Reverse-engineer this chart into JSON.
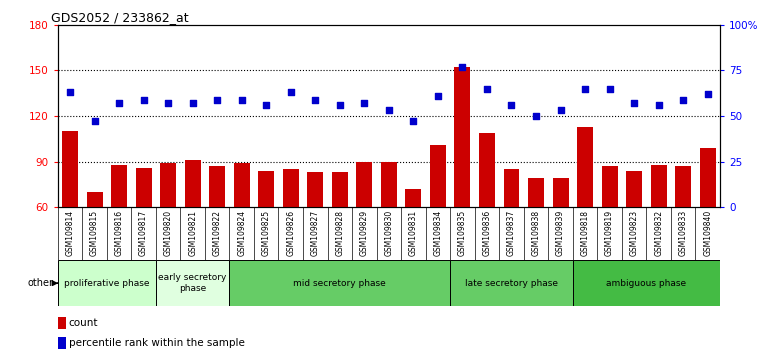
{
  "title": "GDS2052 / 233862_at",
  "samples": [
    "GSM109814",
    "GSM109815",
    "GSM109816",
    "GSM109817",
    "GSM109820",
    "GSM109821",
    "GSM109822",
    "GSM109824",
    "GSM109825",
    "GSM109826",
    "GSM109827",
    "GSM109828",
    "GSM109829",
    "GSM109830",
    "GSM109831",
    "GSM109834",
    "GSM109835",
    "GSM109836",
    "GSM109837",
    "GSM109838",
    "GSM109839",
    "GSM109818",
    "GSM109819",
    "GSM109823",
    "GSM109832",
    "GSM109833",
    "GSM109840"
  ],
  "count": [
    110,
    70,
    88,
    86,
    89,
    91,
    87,
    89,
    84,
    85,
    83,
    83,
    90,
    90,
    72,
    101,
    152,
    109,
    85,
    79,
    79,
    113,
    87,
    84,
    88,
    87,
    99
  ],
  "percentile_pct": [
    63,
    47,
    57,
    59,
    57,
    57,
    59,
    59,
    56,
    63,
    59,
    56,
    57,
    53,
    47,
    61,
    77,
    65,
    56,
    50,
    53,
    65,
    65,
    57,
    56,
    59,
    62
  ],
  "phases": [
    {
      "label": "proliferative phase",
      "start": 0,
      "end": 4,
      "color": "#ccffcc"
    },
    {
      "label": "early secretory\nphase",
      "start": 4,
      "end": 7,
      "color": "#e0ffe0"
    },
    {
      "label": "mid secretory phase",
      "start": 7,
      "end": 16,
      "color": "#66cc66"
    },
    {
      "label": "late secretory phase",
      "start": 16,
      "end": 21,
      "color": "#66cc66"
    },
    {
      "label": "ambiguous phase",
      "start": 21,
      "end": 27,
      "color": "#44bb44"
    }
  ],
  "ylim_left": [
    60,
    180
  ],
  "ylim_right": [
    0,
    100
  ],
  "yticks_left": [
    60,
    90,
    120,
    150,
    180
  ],
  "yticks_right": [
    0,
    25,
    50,
    75,
    100
  ],
  "bar_color": "#cc0000",
  "dot_color": "#0000cc",
  "bg_color": "#ffffff",
  "xticklabel_bg": "#c8c8c8"
}
